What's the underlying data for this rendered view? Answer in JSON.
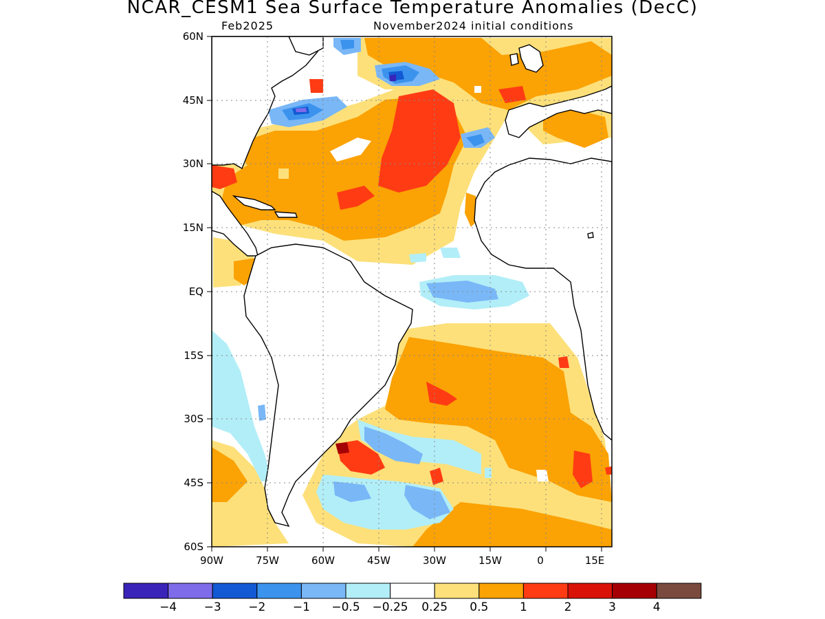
{
  "header": {
    "title": "NCAR_CESM1 Sea Surface Temperature Anomalies (DecC)",
    "valid_month": "Feb2025",
    "init_conditions": "November2024 initial conditions"
  },
  "map": {
    "lon_ticks": [
      "90W",
      "75W",
      "60W",
      "45W",
      "30W",
      "15W",
      "0",
      "15E"
    ],
    "lat_ticks": [
      "60N",
      "45N",
      "30N",
      "15N",
      "EQ",
      "15S",
      "30S",
      "45S",
      "60S"
    ],
    "lon_range": [
      -90,
      18
    ],
    "lat_range": [
      -60,
      60
    ],
    "grid": true
  },
  "colorbar": {
    "colors": [
      "#3a23b8",
      "#7e6bea",
      "#1359d4",
      "#3c93ee",
      "#79b7f7",
      "#b2eef8",
      "#ffffff",
      "#fde07a",
      "#fba204",
      "#ff3b14",
      "#d91208",
      "#a50004",
      "#7a4a3e"
    ],
    "labels": [
      "−4",
      "−3",
      "−2",
      "−1",
      "−0.5",
      "−0.25",
      "0.25",
      "0.5",
      "1",
      "2",
      "3",
      "4"
    ]
  }
}
